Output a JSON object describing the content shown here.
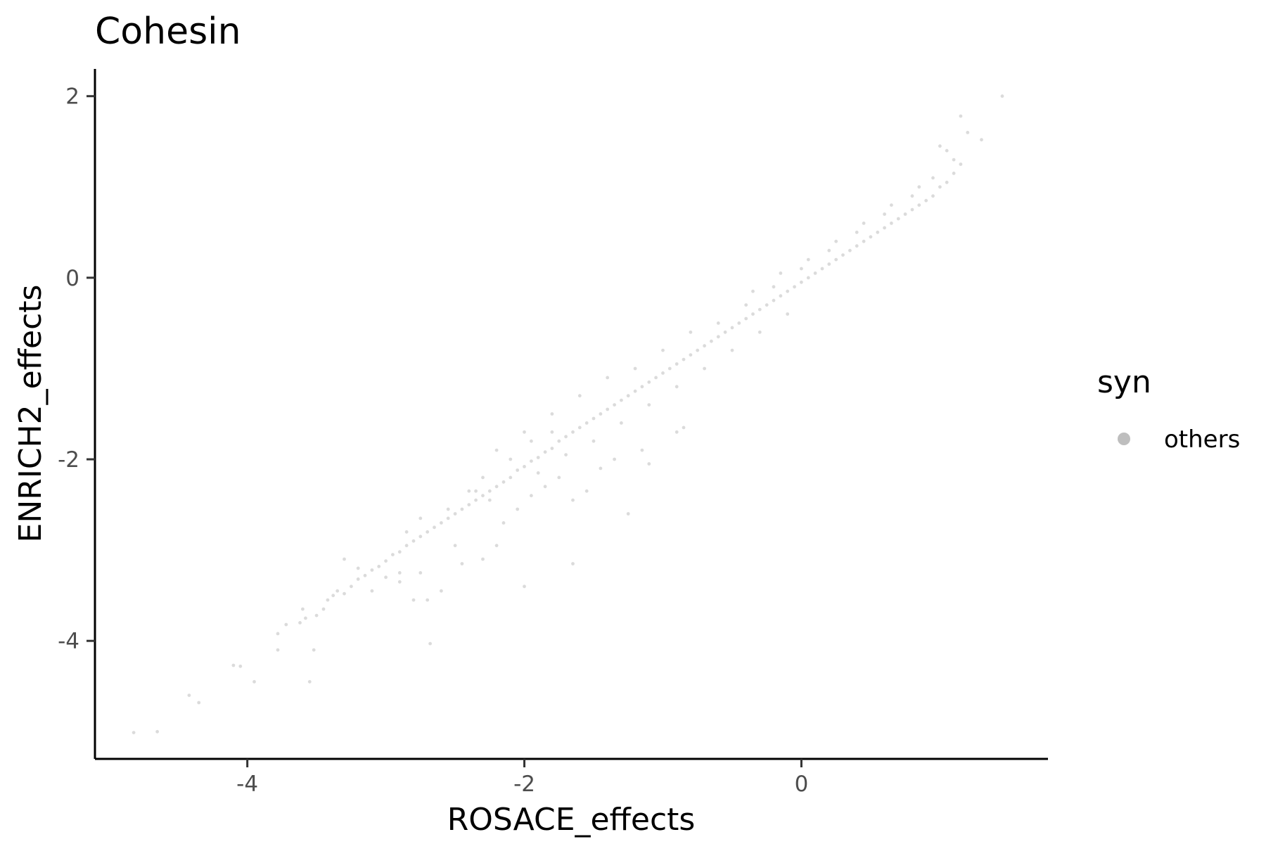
{
  "chart_data": {
    "type": "scatter",
    "title": "Cohesin",
    "xlabel": "ROSACE_effects",
    "ylabel": "ENRICH2_effects",
    "xlim": [
      -5.1,
      1.78
    ],
    "ylim": [
      -5.3,
      2.3
    ],
    "x_ticks": [
      -4,
      -2,
      0
    ],
    "x_tick_labels": [
      "-4",
      "-2",
      "0"
    ],
    "y_ticks": [
      -4,
      -2,
      0,
      2
    ],
    "y_tick_labels": [
      "-4",
      "-2",
      "0",
      "2"
    ],
    "grid": false,
    "legend": {
      "title": "syn",
      "placement": "right",
      "entries": [
        {
          "label": "others",
          "color": "#bebebe"
        }
      ]
    },
    "point_color": "#bebebe",
    "series": [
      {
        "name": "others",
        "points": [
          [
            -4.82,
            -5.01
          ],
          [
            -4.65,
            -5.0
          ],
          [
            -4.35,
            -4.68
          ],
          [
            -4.42,
            -4.6
          ],
          [
            -4.05,
            -4.28
          ],
          [
            -4.1,
            -4.27
          ],
          [
            -3.95,
            -4.45
          ],
          [
            -3.55,
            -4.45
          ],
          [
            -3.78,
            -4.1
          ],
          [
            -3.52,
            -4.1
          ],
          [
            -2.68,
            -4.03
          ],
          [
            -3.78,
            -3.92
          ],
          [
            -3.72,
            -3.82
          ],
          [
            -3.62,
            -3.8
          ],
          [
            -3.58,
            -3.75
          ],
          [
            -3.5,
            -3.72
          ],
          [
            -3.45,
            -3.65
          ],
          [
            -3.42,
            -3.55
          ],
          [
            -3.38,
            -3.5
          ],
          [
            -3.3,
            -3.48
          ],
          [
            -3.25,
            -3.4
          ],
          [
            -3.2,
            -3.32
          ],
          [
            -3.15,
            -3.28
          ],
          [
            -3.1,
            -3.22
          ],
          [
            -3.05,
            -3.18
          ],
          [
            -3.0,
            -3.12
          ],
          [
            -2.95,
            -3.05
          ],
          [
            -2.9,
            -3.02
          ],
          [
            -2.85,
            -2.95
          ],
          [
            -2.8,
            -2.9
          ],
          [
            -2.75,
            -2.85
          ],
          [
            -2.7,
            -2.8
          ],
          [
            -2.65,
            -2.75
          ],
          [
            -2.6,
            -2.7
          ],
          [
            -2.55,
            -2.65
          ],
          [
            -2.5,
            -2.6
          ],
          [
            -2.45,
            -2.55
          ],
          [
            -2.4,
            -2.5
          ],
          [
            -2.35,
            -2.45
          ],
          [
            -2.3,
            -2.4
          ],
          [
            -2.25,
            -2.35
          ],
          [
            -2.2,
            -2.3
          ],
          [
            -2.15,
            -2.25
          ],
          [
            -2.1,
            -2.2
          ],
          [
            -2.05,
            -2.12
          ],
          [
            -2.0,
            -2.08
          ],
          [
            -1.95,
            -2.02
          ],
          [
            -1.9,
            -1.98
          ],
          [
            -1.85,
            -1.92
          ],
          [
            -1.8,
            -1.88
          ],
          [
            -1.75,
            -1.8
          ],
          [
            -1.7,
            -1.75
          ],
          [
            -1.65,
            -1.7
          ],
          [
            -1.6,
            -1.65
          ],
          [
            -1.55,
            -1.6
          ],
          [
            -1.5,
            -1.55
          ],
          [
            -1.45,
            -1.5
          ],
          [
            -1.4,
            -1.45
          ],
          [
            -1.35,
            -1.4
          ],
          [
            -1.3,
            -1.35
          ],
          [
            -1.25,
            -1.3
          ],
          [
            -1.2,
            -1.25
          ],
          [
            -1.15,
            -1.2
          ],
          [
            -1.1,
            -1.15
          ],
          [
            -1.05,
            -1.1
          ],
          [
            -1.0,
            -1.05
          ],
          [
            -0.95,
            -1.0
          ],
          [
            -0.9,
            -0.95
          ],
          [
            -0.85,
            -0.9
          ],
          [
            -0.8,
            -0.85
          ],
          [
            -0.75,
            -0.8
          ],
          [
            -0.7,
            -0.75
          ],
          [
            -0.65,
            -0.7
          ],
          [
            -0.6,
            -0.65
          ],
          [
            -0.55,
            -0.6
          ],
          [
            -0.5,
            -0.55
          ],
          [
            -0.45,
            -0.5
          ],
          [
            -0.4,
            -0.45
          ],
          [
            -0.35,
            -0.4
          ],
          [
            -0.3,
            -0.35
          ],
          [
            -0.25,
            -0.3
          ],
          [
            -0.2,
            -0.25
          ],
          [
            -0.15,
            -0.2
          ],
          [
            -0.1,
            -0.15
          ],
          [
            -0.05,
            -0.1
          ],
          [
            0.0,
            -0.05
          ],
          [
            0.05,
            0.0
          ],
          [
            0.1,
            0.05
          ],
          [
            0.15,
            0.1
          ],
          [
            0.2,
            0.15
          ],
          [
            0.25,
            0.2
          ],
          [
            0.3,
            0.25
          ],
          [
            0.35,
            0.3
          ],
          [
            0.4,
            0.35
          ],
          [
            0.45,
            0.4
          ],
          [
            0.5,
            0.45
          ],
          [
            0.55,
            0.5
          ],
          [
            0.6,
            0.55
          ],
          [
            0.65,
            0.6
          ],
          [
            0.7,
            0.65
          ],
          [
            0.75,
            0.7
          ],
          [
            0.8,
            0.75
          ],
          [
            0.85,
            0.8
          ],
          [
            0.9,
            0.85
          ],
          [
            0.95,
            0.9
          ],
          [
            1.0,
            1.0
          ],
          [
            1.05,
            1.05
          ],
          [
            1.1,
            1.15
          ],
          [
            1.15,
            1.25
          ],
          [
            1.1,
            1.3
          ],
          [
            1.05,
            1.4
          ],
          [
            1.0,
            1.45
          ],
          [
            1.2,
            1.6
          ],
          [
            1.3,
            1.52
          ],
          [
            1.45,
            2.0
          ],
          [
            1.15,
            1.78
          ],
          [
            -2.5,
            -2.95
          ],
          [
            -2.45,
            -3.15
          ],
          [
            -2.3,
            -3.1
          ],
          [
            -2.2,
            -2.95
          ],
          [
            -2.15,
            -2.7
          ],
          [
            -2.05,
            -2.55
          ],
          [
            -1.95,
            -2.4
          ],
          [
            -1.85,
            -2.3
          ],
          [
            -1.75,
            -2.2
          ],
          [
            -1.65,
            -2.45
          ],
          [
            -1.55,
            -2.35
          ],
          [
            -1.45,
            -2.1
          ],
          [
            -1.35,
            -2.0
          ],
          [
            -1.15,
            -1.9
          ],
          [
            -1.25,
            -2.6
          ],
          [
            -2.0,
            -3.4
          ],
          [
            -1.65,
            -3.15
          ],
          [
            -2.8,
            -3.55
          ],
          [
            -2.7,
            -3.55
          ],
          [
            -2.6,
            -3.45
          ],
          [
            -2.9,
            -3.35
          ],
          [
            -3.1,
            -3.45
          ],
          [
            -2.35,
            -2.35
          ],
          [
            -2.25,
            -2.45
          ],
          [
            -1.9,
            -2.15
          ],
          [
            -1.7,
            -1.95
          ],
          [
            -1.5,
            -1.8
          ],
          [
            -1.3,
            -1.6
          ],
          [
            -1.1,
            -1.4
          ],
          [
            -0.9,
            -1.2
          ],
          [
            -0.7,
            -1.0
          ],
          [
            -0.5,
            -0.8
          ],
          [
            -0.3,
            -0.6
          ],
          [
            -0.1,
            -0.4
          ],
          [
            -0.6,
            -0.5
          ],
          [
            -0.4,
            -0.3
          ],
          [
            -0.2,
            -0.1
          ],
          [
            0.0,
            0.1
          ],
          [
            0.2,
            0.3
          ],
          [
            0.4,
            0.5
          ],
          [
            0.6,
            0.7
          ],
          [
            0.8,
            0.9
          ],
          [
            -0.35,
            -0.15
          ],
          [
            -0.15,
            0.05
          ],
          [
            0.05,
            0.2
          ],
          [
            0.25,
            0.4
          ],
          [
            0.45,
            0.6
          ],
          [
            0.65,
            0.8
          ],
          [
            0.85,
            1.0
          ],
          [
            0.95,
            1.1
          ],
          [
            -1.0,
            -0.8
          ],
          [
            -0.8,
            -0.6
          ],
          [
            -1.2,
            -1.0
          ],
          [
            -1.4,
            -1.1
          ],
          [
            -1.6,
            -1.3
          ],
          [
            -1.8,
            -1.5
          ],
          [
            -2.0,
            -1.7
          ],
          [
            -2.2,
            -1.9
          ],
          [
            -0.9,
            -1.7
          ],
          [
            -0.85,
            -1.65
          ],
          [
            -1.1,
            -2.05
          ],
          [
            -2.75,
            -3.25
          ],
          [
            -3.6,
            -3.65
          ],
          [
            -3.35,
            -3.45
          ],
          [
            -3.0,
            -3.3
          ],
          [
            -2.9,
            -3.25
          ],
          [
            -3.2,
            -3.2
          ],
          [
            -3.3,
            -3.1
          ],
          [
            -2.85,
            -2.8
          ],
          [
            -2.75,
            -2.65
          ],
          [
            -2.55,
            -2.55
          ],
          [
            -2.4,
            -2.35
          ],
          [
            -2.3,
            -2.2
          ],
          [
            -2.1,
            -2.0
          ],
          [
            -1.95,
            -1.8
          ],
          [
            -1.8,
            -1.7
          ]
        ]
      }
    ]
  }
}
